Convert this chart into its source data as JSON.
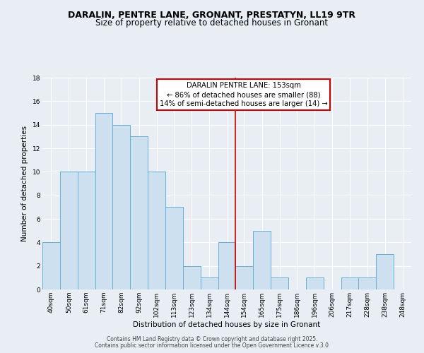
{
  "title1": "DARALIN, PENTRE LANE, GRONANT, PRESTATYN, LL19 9TR",
  "title2": "Size of property relative to detached houses in Gronant",
  "xlabel": "Distribution of detached houses by size in Gronant",
  "ylabel": "Number of detached properties",
  "categories": [
    "40sqm",
    "50sqm",
    "61sqm",
    "71sqm",
    "82sqm",
    "92sqm",
    "102sqm",
    "113sqm",
    "123sqm",
    "134sqm",
    "144sqm",
    "154sqm",
    "165sqm",
    "175sqm",
    "186sqm",
    "196sqm",
    "206sqm",
    "217sqm",
    "228sqm",
    "238sqm",
    "248sqm"
  ],
  "values": [
    4,
    10,
    10,
    15,
    14,
    13,
    10,
    7,
    2,
    1,
    4,
    2,
    5,
    1,
    0,
    1,
    0,
    1,
    1,
    3,
    0
  ],
  "bar_color": "#cce0f0",
  "bar_edge_color": "#6aafd6",
  "vline_color": "#cc0000",
  "annotation_title": "DARALIN PENTRE LANE: 153sqm",
  "annotation_line2": "← 86% of detached houses are smaller (88)",
  "annotation_line3": "14% of semi-detached houses are larger (14) →",
  "annotation_box_color": "#cc0000",
  "ylim": [
    0,
    18
  ],
  "yticks": [
    0,
    2,
    4,
    6,
    8,
    10,
    12,
    14,
    16,
    18
  ],
  "footer1": "Contains HM Land Registry data © Crown copyright and database right 2025.",
  "footer2": "Contains public sector information licensed under the Open Government Licence v.3.0",
  "bg_color": "#e8eef4",
  "plot_bg_color": "#e8eef4",
  "title_fontsize": 9,
  "subtitle_fontsize": 8.5,
  "axis_label_fontsize": 7.5,
  "tick_fontsize": 6.5,
  "annotation_fontsize": 7.2,
  "footer_fontsize": 5.5
}
